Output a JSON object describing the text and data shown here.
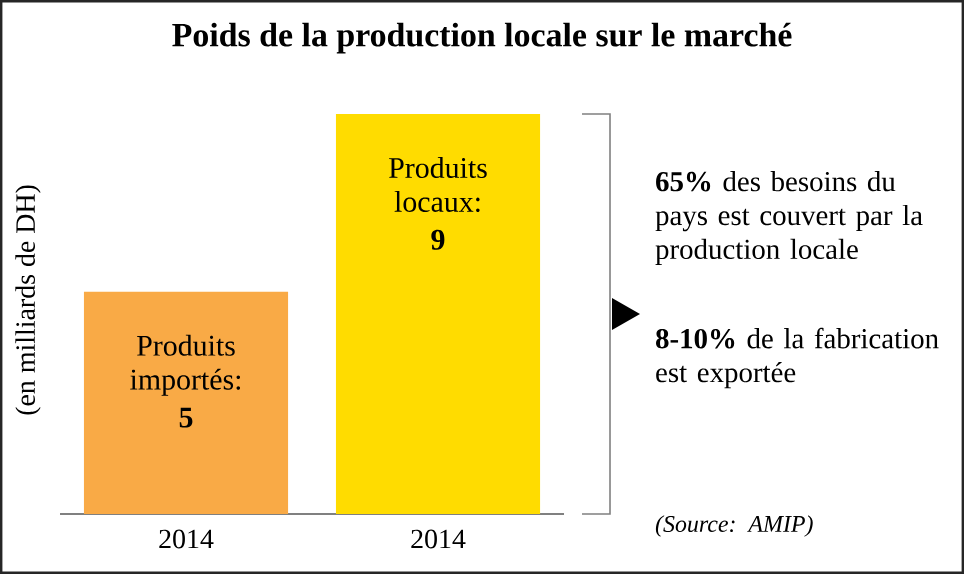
{
  "chart_data": {
    "type": "bar",
    "title": "Poids de la production locale sur le marché",
    "ylabel": "(en milliards de DH)",
    "categories": [
      "2014",
      "2014"
    ],
    "series": [
      {
        "name": "Produits importés:",
        "color": "#f9aa46",
        "values": [
          5,
          null
        ]
      },
      {
        "name": "Produits locaux:",
        "color": "#ffdc00",
        "values": [
          null,
          9
        ]
      }
    ],
    "data_labels": true,
    "annotations": [
      "**65%** des besoins du pays est couvert par la production locale",
      "**8-10%** de la fabrication est exportée",
      "(Source: AMIP)"
    ]
  }
}
